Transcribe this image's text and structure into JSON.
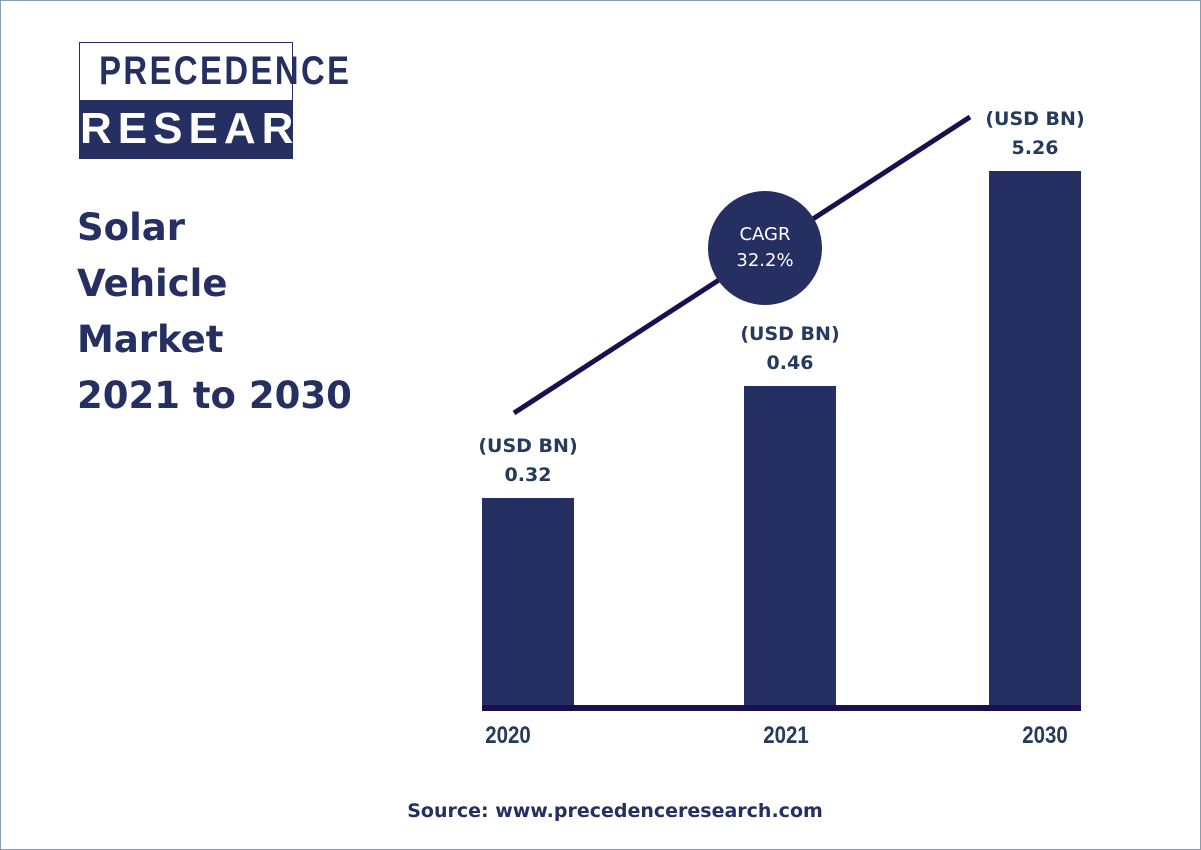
{
  "brand": {
    "line1": "PRECEDENCE",
    "line2": "RESEARCH"
  },
  "title_lines": [
    "Solar",
    "Vehicle",
    "Market",
    "2021 to 2030"
  ],
  "source": "Source: www.precedenceresearch.com",
  "colors": {
    "bar": "#252f62",
    "trend_line": "#1a1050",
    "text": "#253a5c"
  },
  "chart_data": {
    "type": "bar",
    "title": "Solar Vehicle Market 2021 to 2030",
    "categories": [
      "2020",
      "2021",
      "2030"
    ],
    "values": [
      0.32,
      0.46,
      5.26
    ],
    "unit_label": "(USD BN)",
    "value_labels": [
      "0.32",
      "0.46",
      "5.26"
    ],
    "annotation": {
      "line1": "CAGR",
      "line2": "32.2%"
    },
    "grid": false
  }
}
